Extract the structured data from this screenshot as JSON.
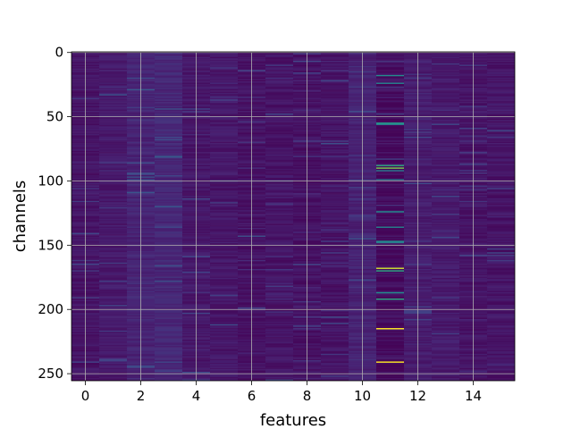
{
  "chart_data": {
    "type": "heatmap",
    "title": "",
    "xlabel": "features",
    "ylabel": "channels",
    "x_columns": 16,
    "y_rows": 256,
    "xlim": [
      -0.5,
      15.5
    ],
    "ylim": [
      255.5,
      -0.5
    ],
    "y_inverted": true,
    "xticks": [
      0,
      2,
      4,
      6,
      8,
      10,
      12,
      14
    ],
    "yticks": [
      0,
      50,
      100,
      150,
      200,
      250
    ],
    "grid": true,
    "grid_color": "#b0b0b0",
    "colormap": "viridis",
    "background_value": 0.08,
    "column_profile": [
      0.07,
      0.09,
      0.13,
      0.14,
      0.08,
      0.08,
      0.06,
      0.07,
      0.06,
      0.07,
      0.12,
      0.05,
      0.1,
      0.09,
      0.07,
      0.07
    ],
    "highlights": [
      {
        "column": 10.5,
        "rows": [
          18,
          55,
          56,
          88,
          92,
          124,
          147,
          192,
          215
        ],
        "values": [
          0.6,
          0.65,
          0.55,
          0.7,
          0.5,
          0.95,
          0.6,
          0.7,
          1.0
        ]
      },
      {
        "column": 11,
        "rows": [
          24,
          90,
          99,
          124,
          136,
          148,
          168,
          170,
          187,
          241
        ],
        "values": [
          0.55,
          0.85,
          0.5,
          0.6,
          0.55,
          0.5,
          0.95,
          0.7,
          0.6,
          1.0
        ]
      },
      {
        "column": 2,
        "rows": [
          29,
          86
        ],
        "values": [
          0.35,
          0.3
        ]
      },
      {
        "column": 3,
        "rows": [
          68,
          120,
          178
        ],
        "values": [
          0.3,
          0.35,
          0.3
        ]
      }
    ]
  }
}
